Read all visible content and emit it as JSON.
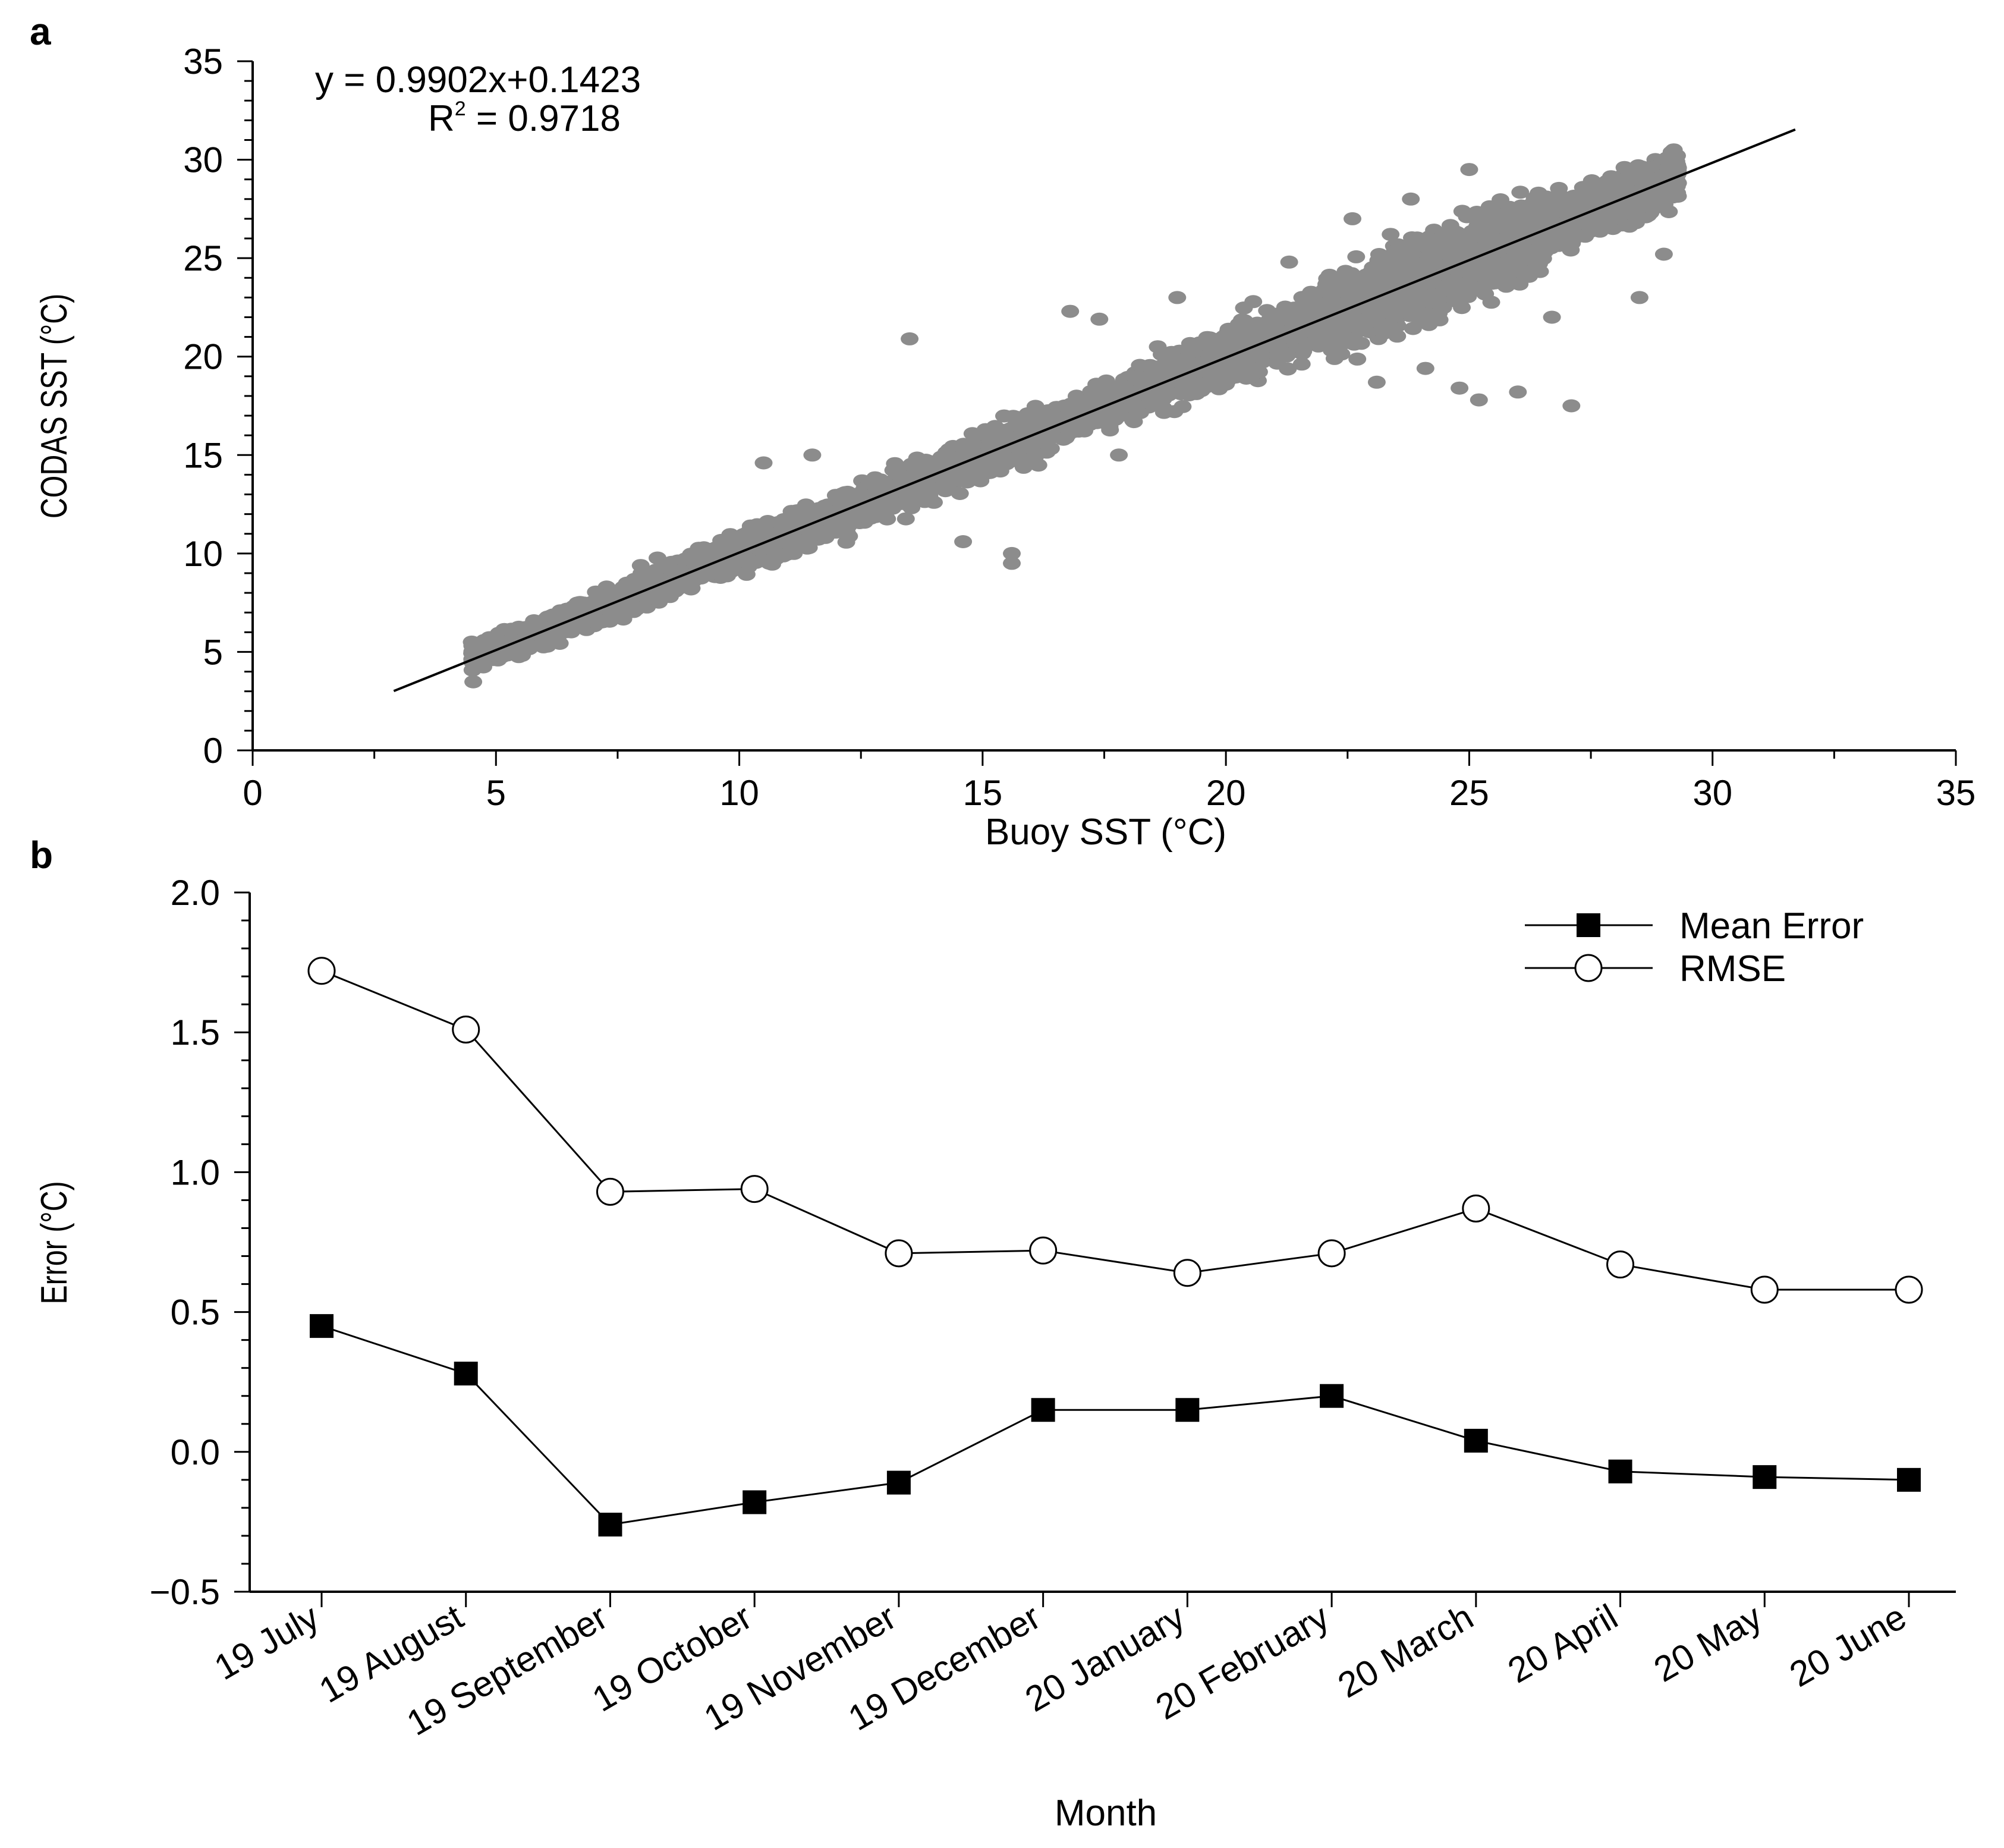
{
  "chart_data": [
    {
      "type": "scatter",
      "panel_label": "a",
      "xlabel": "Buoy SST (°C)",
      "ylabel": "CODAS SST (°C)",
      "xlim": [
        0,
        35
      ],
      "ylim": [
        0,
        35
      ],
      "x_ticks": [
        "0",
        "5",
        "10",
        "15",
        "20",
        "25",
        "30",
        "35"
      ],
      "y_ticks": [
        "0",
        "5",
        "10",
        "15",
        "20",
        "25",
        "30",
        "35"
      ],
      "equation": "y = 0.9902x+0.1423",
      "r2_label": "R",
      "r2_exp": "2",
      "r2_value": " = 0.9718",
      "regression": {
        "slope": 0.9902,
        "intercept": 0.1423,
        "x_range": [
          2.9,
          31.7
        ]
      },
      "point_color": "#8c8c8c",
      "line_color": "#000000",
      "density_bands": [
        {
          "x_range": [
            4.5,
            7.5
          ],
          "center_offset": 0.0,
          "spread": 0.6,
          "count": 520
        },
        {
          "x_range": [
            7.5,
            12.0
          ],
          "center_offset": 0.0,
          "spread": 0.8,
          "count": 900
        },
        {
          "x_range": [
            12.0,
            18.0
          ],
          "center_offset": 0.0,
          "spread": 0.9,
          "count": 1100
        },
        {
          "x_range": [
            18.0,
            22.0
          ],
          "center_offset": 0.0,
          "spread": 1.1,
          "count": 1000
        },
        {
          "x_range": [
            22.0,
            26.5
          ],
          "center_offset": 0.0,
          "spread": 1.6,
          "count": 1700
        },
        {
          "x_range": [
            26.5,
            29.3
          ],
          "center_offset": 0.0,
          "spread": 1.0,
          "count": 1200
        }
      ],
      "outliers": [
        [
          13.5,
          20.9
        ],
        [
          10.5,
          14.6
        ],
        [
          11.5,
          15.0
        ],
        [
          14.6,
          10.6
        ],
        [
          15.6,
          10.0
        ],
        [
          15.6,
          9.5
        ],
        [
          16.8,
          22.3
        ],
        [
          17.4,
          21.9
        ],
        [
          25.0,
          29.5
        ],
        [
          28.5,
          23.0
        ],
        [
          26.0,
          18.2
        ],
        [
          27.1,
          17.5
        ],
        [
          25.2,
          17.8
        ],
        [
          24.8,
          18.4
        ],
        [
          21.3,
          24.8
        ],
        [
          19.0,
          23.0
        ],
        [
          17.8,
          15.0
        ],
        [
          14.0,
          12.6
        ],
        [
          9.6,
          9.2
        ],
        [
          12.7,
          11.8
        ],
        [
          18.6,
          20.5
        ],
        [
          27.7,
          27.6
        ],
        [
          28.7,
          28.6
        ],
        [
          22.6,
          27.0
        ],
        [
          23.8,
          28.0
        ],
        [
          26.7,
          22.0
        ],
        [
          29.0,
          25.2
        ],
        [
          24.1,
          19.4
        ],
        [
          23.1,
          18.7
        ],
        [
          20.0,
          18.6
        ]
      ]
    },
    {
      "type": "line",
      "panel_label": "b",
      "xlabel": "Month",
      "ylabel": "Error (°C)",
      "ylim": [
        -0.5,
        2.0
      ],
      "y_ticks": [
        "−0.5",
        "0.0",
        "0.5",
        "1.0",
        "1.5",
        "2.0"
      ],
      "y_tick_values": [
        -0.5,
        0.0,
        0.5,
        1.0,
        1.5,
        2.0
      ],
      "categories": [
        "19 July",
        "19 August",
        "19 September",
        "19 October",
        "19 November",
        "19 December",
        "20 January",
        "20 February",
        "20 March",
        "20 April",
        "20 May",
        "20 June"
      ],
      "series": [
        {
          "name": "Mean Error",
          "marker": "square-filled",
          "values": [
            0.45,
            0.28,
            -0.26,
            -0.18,
            -0.11,
            0.15,
            0.15,
            0.2,
            0.04,
            -0.07,
            -0.09,
            -0.1
          ]
        },
        {
          "name": "RMSE",
          "marker": "circle-open",
          "values": [
            1.72,
            1.51,
            0.93,
            0.94,
            0.71,
            0.72,
            0.64,
            0.71,
            0.87,
            0.67,
            0.58,
            0.58
          ]
        }
      ],
      "legend_position": "top-right"
    }
  ]
}
